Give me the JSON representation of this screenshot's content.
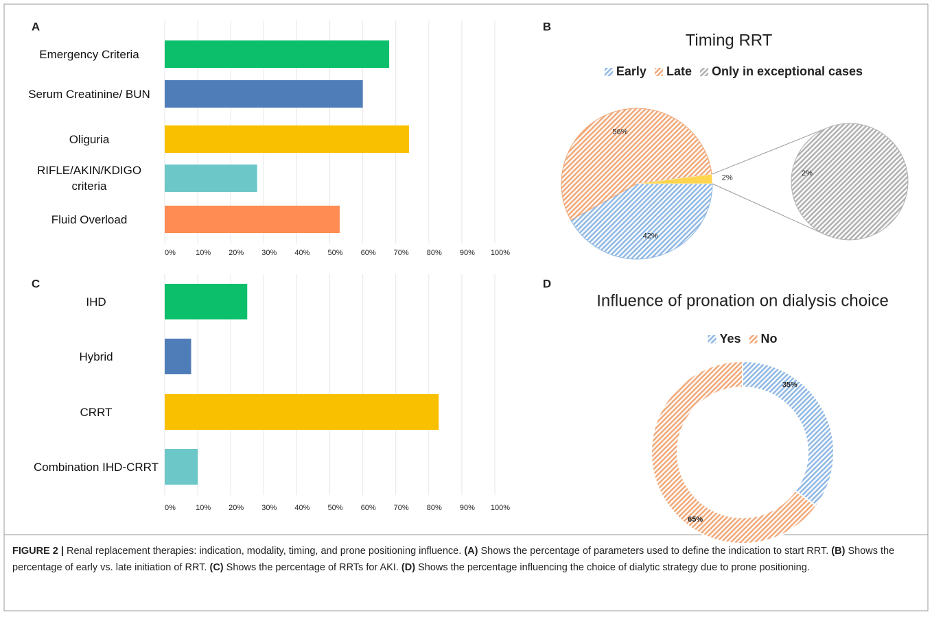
{
  "chart_data": [
    {
      "type": "bar",
      "orientation": "horizontal",
      "label": "A",
      "categories": [
        "Emergency Criteria",
        "Serum Creatinine/ BUN",
        "Oliguria",
        "RIFLE/AKIN/KDIGO criteria",
        "Fluid Overload"
      ],
      "values": [
        68,
        60,
        74,
        28,
        53
      ],
      "colors": [
        "#0bbf6b",
        "#4f7db8",
        "#f9c000",
        "#6cc7c9",
        "#ff8c52"
      ],
      "xlim": [
        0,
        100
      ],
      "xticks": [
        {
          "value": 0,
          "label": "0%"
        },
        {
          "value": 10,
          "label": "10%"
        },
        {
          "value": 20,
          "label": "20%"
        },
        {
          "value": 30,
          "label": "30%"
        },
        {
          "value": 40,
          "label": "40%"
        },
        {
          "value": 50,
          "label": "50%"
        },
        {
          "value": 60,
          "label": "60%"
        },
        {
          "value": 70,
          "label": "70%"
        },
        {
          "value": 80,
          "label": "80%"
        },
        {
          "value": 90,
          "label": "90%"
        },
        {
          "value": 100,
          "label": "100%"
        }
      ],
      "grid": true
    },
    {
      "type": "pie",
      "label": "B",
      "title": "Timing RRT",
      "categories": [
        "Early",
        "Late",
        "Only in exceptional cases"
      ],
      "values": [
        42,
        56,
        2
      ],
      "value_labels": [
        "42%",
        "56%",
        "2%"
      ],
      "colors": [
        "#8fb8e3",
        "#f0a878",
        "#b0b0b0"
      ],
      "other_color": "#ffd54f",
      "legend": "top"
    },
    {
      "type": "bar",
      "orientation": "horizontal",
      "label": "C",
      "categories": [
        "IHD",
        "Hybrid",
        "CRRT",
        "Combination IHD-CRRT"
      ],
      "values": [
        25,
        8,
        83,
        10
      ],
      "colors": [
        "#0bbf6b",
        "#4f7db8",
        "#f9c000",
        "#6cc7c9"
      ],
      "xlim": [
        0,
        100
      ],
      "xticks": [
        {
          "value": 0,
          "label": "0%"
        },
        {
          "value": 10,
          "label": "10%"
        },
        {
          "value": 20,
          "label": "20%"
        },
        {
          "value": 30,
          "label": "30%"
        },
        {
          "value": 40,
          "label": "40%"
        },
        {
          "value": 50,
          "label": "50%"
        },
        {
          "value": 60,
          "label": "60%"
        },
        {
          "value": 70,
          "label": "70%"
        },
        {
          "value": 80,
          "label": "80%"
        },
        {
          "value": 90,
          "label": "90%"
        },
        {
          "value": 100,
          "label": "100%"
        }
      ],
      "grid": true
    },
    {
      "type": "donut",
      "label": "D",
      "title": "Influence of pronation on dialysis choice",
      "categories": [
        "Yes",
        "No"
      ],
      "values": [
        35,
        65
      ],
      "value_labels": [
        "35%",
        "65%"
      ],
      "colors": [
        "#8fb8e3",
        "#f0a878"
      ],
      "legend": "top"
    }
  ],
  "caption": [
    {
      "text": "FIGURE 2 |",
      "bold": true
    },
    {
      "text": "Renal replacement therapies: indication, modality, timing, and prone positioning influence.",
      "bold": false
    },
    {
      "text": "(A)",
      "bold": true
    },
    {
      "text": "Shows the percentage of parameters used to define the indication to start RRT.",
      "bold": false
    },
    {
      "text": "(B)",
      "bold": true
    },
    {
      "text": "Shows the percentage of early vs. late initiation of RRT.",
      "bold": false
    },
    {
      "text": "(C)",
      "bold": true
    },
    {
      "text": "Shows the percentage of RRTs for AKI.",
      "bold": false
    },
    {
      "text": "(D)",
      "bold": true
    },
    {
      "text": "Shows the percentage influencing the choice of dialytic strategy due to prone positioning.",
      "bold": false
    }
  ]
}
